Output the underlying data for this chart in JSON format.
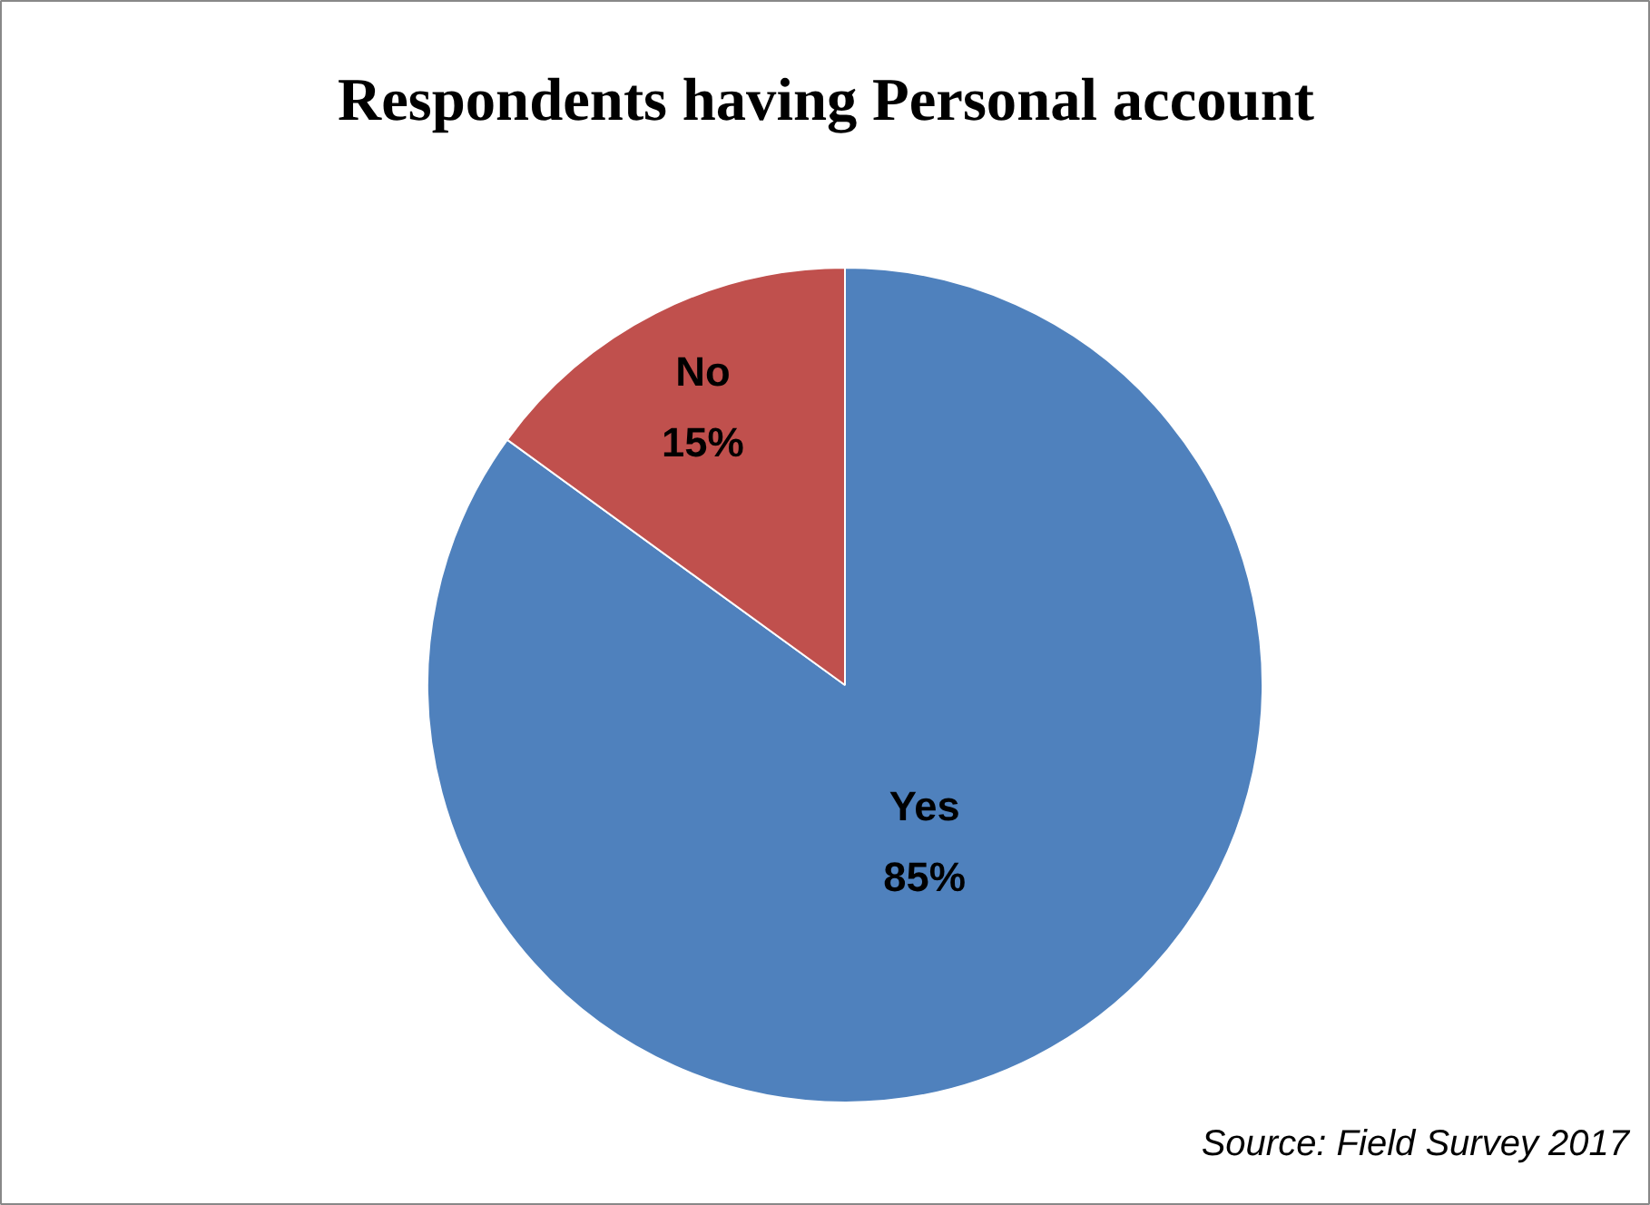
{
  "chart_data": {
    "type": "pie",
    "title": "Respondents having Personal account",
    "categories": [
      "Yes",
      "No"
    ],
    "values": [
      85,
      15
    ],
    "value_labels": [
      "85%",
      "15%"
    ],
    "colors": [
      "#4f81bd",
      "#c0504d"
    ],
    "annotations": [
      "Source: Field Survey 2017"
    ]
  }
}
